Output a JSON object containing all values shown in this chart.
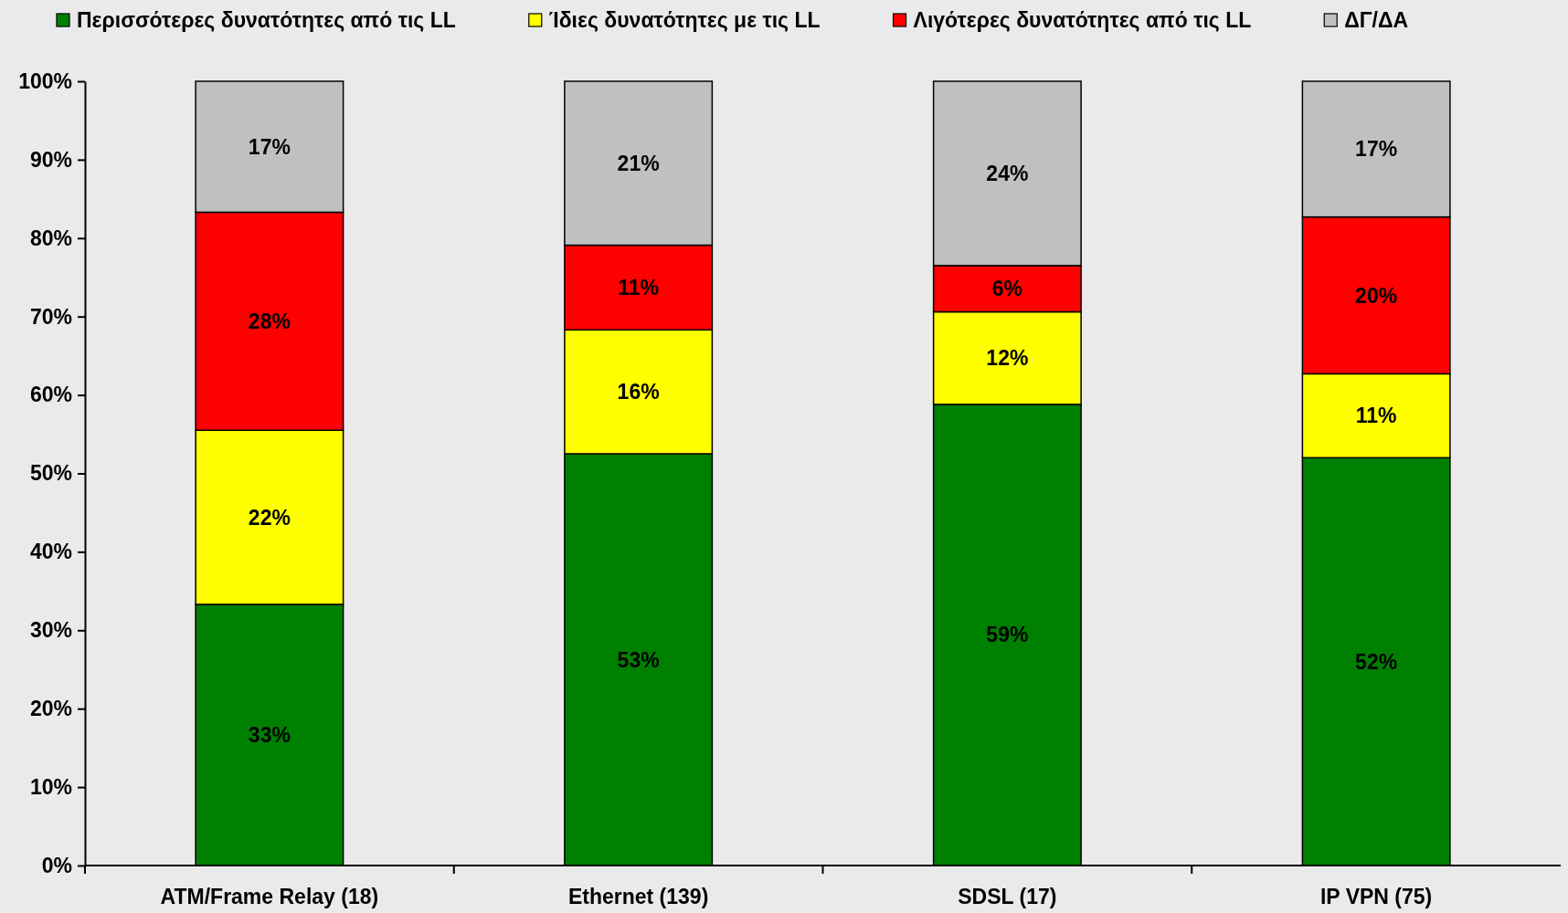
{
  "chart_data": {
    "type": "bar",
    "stacked": true,
    "categories": [
      "ATM/Frame Relay (18)",
      "Ethernet (139)",
      "SDSL (17)",
      "IP VPN (75)"
    ],
    "series": [
      {
        "name": "Περισσότερες δυνατότητες από τις LL",
        "color": "#008000",
        "values": [
          33.3,
          52.5,
          58.8,
          52.0
        ],
        "value_labels": [
          "33%",
          "53%",
          "59%",
          "52%"
        ]
      },
      {
        "name": "Ίδιες δυνατότητες με τις LL",
        "color": "#ffff00",
        "values": [
          22.2,
          15.8,
          11.8,
          10.7
        ],
        "value_labels": [
          "22%",
          "16%",
          "12%",
          "11%"
        ]
      },
      {
        "name": "Λιγότερες δυνατότητες από τις LL",
        "color": "#ff0000",
        "values": [
          27.8,
          10.8,
          5.9,
          20.0
        ],
        "value_labels": [
          "28%",
          "11%",
          "6%",
          "20%"
        ]
      },
      {
        "name": "ΔΓ/ΔΑ",
        "color": "#c0c0c0",
        "values": [
          16.7,
          20.9,
          23.5,
          17.3
        ],
        "value_labels": [
          "17%",
          "21%",
          "24%",
          "17%"
        ]
      }
    ],
    "ylim": [
      0,
      100
    ],
    "yticks": [
      {
        "value": 0,
        "label": "0%"
      },
      {
        "value": 10,
        "label": "10%"
      },
      {
        "value": 20,
        "label": "20%"
      },
      {
        "value": 30,
        "label": "30%"
      },
      {
        "value": 40,
        "label": "40%"
      },
      {
        "value": 50,
        "label": "50%"
      },
      {
        "value": 60,
        "label": "60%"
      },
      {
        "value": 70,
        "label": "70%"
      },
      {
        "value": 80,
        "label": "80%"
      },
      {
        "value": 90,
        "label": "90%"
      },
      {
        "value": 100,
        "label": "100%"
      }
    ],
    "legend": "top"
  }
}
